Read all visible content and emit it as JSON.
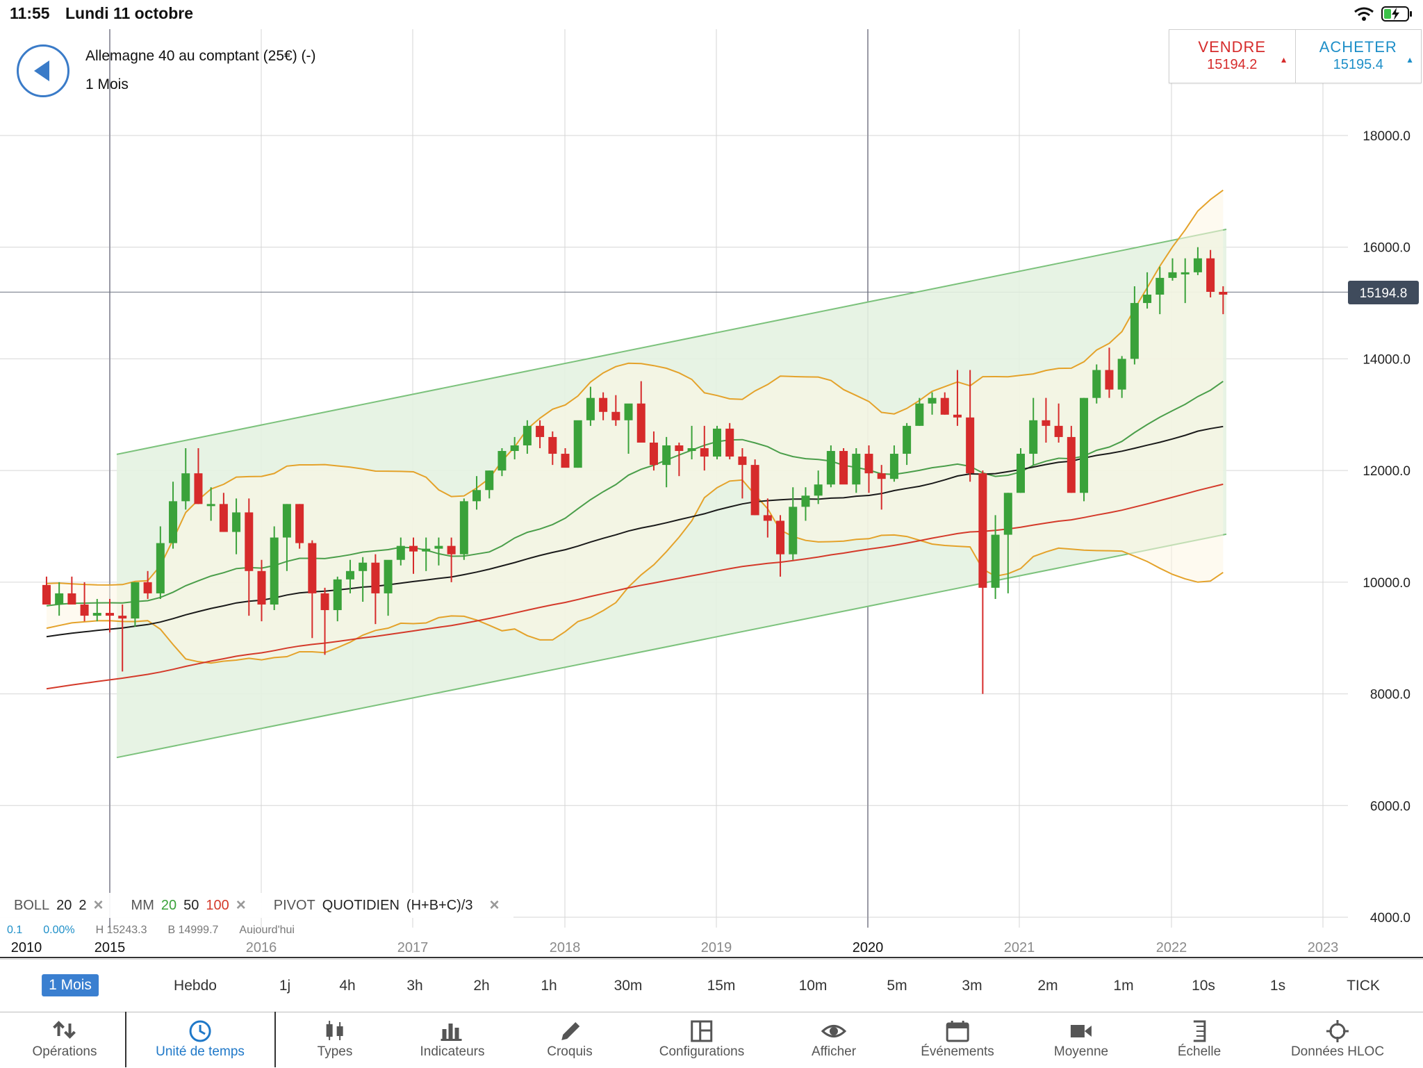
{
  "status_bar": {
    "time": "11:55",
    "date": "Lundi 11 octobre"
  },
  "header": {
    "instrument": "Allemagne 40 au comptant (25€) (-)",
    "period": "1 Mois"
  },
  "trade": {
    "sell_label": "VENDRE",
    "sell_price": "15194.2",
    "buy_label": "ACHETER",
    "buy_price": "15195.4",
    "sell_color": "#d62b2b",
    "buy_color": "#1e8fc8"
  },
  "chart_data": {
    "type": "candlestick",
    "y_axis": {
      "ticks": [
        "18000.0",
        "16000.0",
        "14000.0",
        "12000.0",
        "10000.0",
        "8000.0",
        "6000.0",
        "4000.0"
      ],
      "range": [
        4000,
        18000
      ]
    },
    "x_axis": {
      "ticks": [
        {
          "label": "2010",
          "bold": true
        },
        {
          "label": "2015",
          "bold": true
        },
        {
          "label": "2016",
          "bold": false
        },
        {
          "label": "2017",
          "bold": false
        },
        {
          "label": "2018",
          "bold": false
        },
        {
          "label": "2019",
          "bold": false
        },
        {
          "label": "2020",
          "bold": true
        },
        {
          "label": "2021",
          "bold": false
        },
        {
          "label": "2022",
          "bold": false
        },
        {
          "label": "2023",
          "bold": false
        }
      ]
    },
    "current_price": "15194.8",
    "colors": {
      "up": "#3aa23a",
      "down": "#d62b2b",
      "channel": "#7cc27c",
      "bollinger": "#e4a22a",
      "ma20": "#4a9e4a",
      "ma50": "#1a1a1a",
      "ma100": "#d43a2a"
    }
  },
  "indicators": {
    "boll": {
      "name": "BOLL",
      "p1": "20",
      "p2": "2",
      "close": "×"
    },
    "mm": {
      "name": "MM",
      "p1": "20",
      "p2": "50",
      "p3": "100",
      "close": "×",
      "p1_color": "#3aa23a",
      "p3_color": "#d43a2a"
    },
    "pivot": {
      "name": "PIVOT",
      "type": "QUOTIDIEN",
      "formula": "(H+B+C)/3",
      "close": "×"
    }
  },
  "sub_info": {
    "a": "0.1",
    "b": "0.00%",
    "c": "H 15243.3",
    "d": "B 14999.7",
    "e": "Aujourd'hui"
  },
  "timeframes": [
    {
      "label": "1 Mois",
      "active": true
    },
    {
      "label": "Hebdo"
    },
    {
      "label": "1j"
    },
    {
      "label": "4h"
    },
    {
      "label": "3h"
    },
    {
      "label": "2h"
    },
    {
      "label": "1h"
    },
    {
      "label": "30m"
    },
    {
      "label": "15m"
    },
    {
      "label": "10m"
    },
    {
      "label": "5m"
    },
    {
      "label": "3m"
    },
    {
      "label": "2m"
    },
    {
      "label": "1m"
    },
    {
      "label": "10s"
    },
    {
      "label": "1s"
    },
    {
      "label": "TICK"
    }
  ],
  "toolbar": [
    {
      "label": "Opérations",
      "icon": "arrows-updown-icon"
    },
    {
      "label": "Unité de temps",
      "icon": "clock-icon",
      "active": true
    },
    {
      "label": "Types",
      "icon": "candlestick-icon"
    },
    {
      "label": "Indicateurs",
      "icon": "bar-chart-icon"
    },
    {
      "label": "Croquis",
      "icon": "pencil-icon"
    },
    {
      "label": "Configurations",
      "icon": "layout-icon"
    },
    {
      "label": "Afficher",
      "icon": "eye-icon"
    },
    {
      "label": "Événements",
      "icon": "calendar-icon"
    },
    {
      "label": "Moyenne",
      "icon": "camera-icon"
    },
    {
      "label": "Échelle",
      "icon": "scale-icon"
    },
    {
      "label": "Données HLOC",
      "icon": "crosshair-icon"
    }
  ]
}
